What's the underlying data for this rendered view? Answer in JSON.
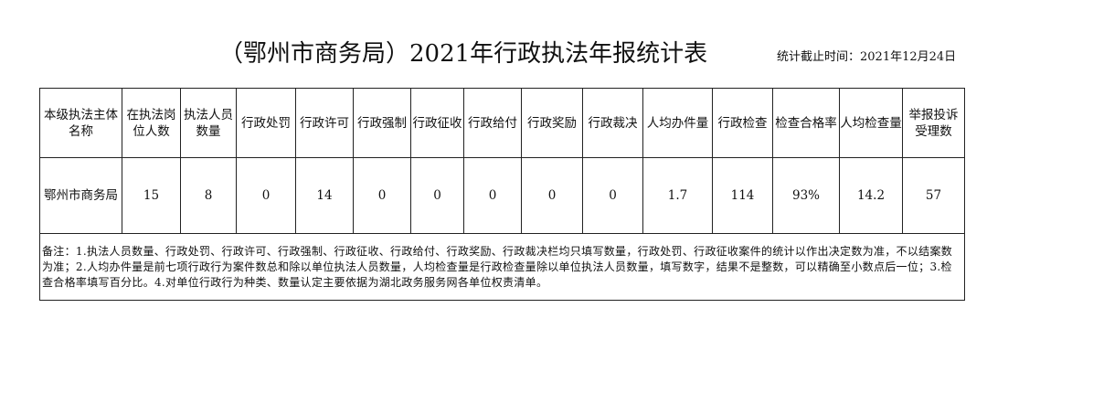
{
  "title": "（鄂州市商务局）2021年行政执法年报统计表",
  "date": "统计截止时间：2021年12月24日",
  "headers": [
    "本级执法主体名称",
    "在执法岗位人数",
    "执法人员数量",
    "行政处罚",
    "行政许可",
    "行政强制",
    "行政征收",
    "行政给付",
    "行政奖励",
    "行政裁决",
    "人均办件量",
    "行政检查",
    "检查合格率",
    "人均检查量",
    "举报投诉受理数"
  ],
  "row": [
    "鄂州市商务局",
    "15",
    "8",
    "0",
    "14",
    "0",
    "0",
    "0",
    "0",
    "0",
    "1.7",
    "114",
    "93%",
    "14.2",
    "57"
  ],
  "note": "备注：1.执法人员数量、行政处罚、行政许可、行政强制、行政征收、行政给付、行政奖励、行政裁决栏均只填写数量，行政处罚、行政征收案件的统计以作出决定数为准，不以结案数为准；2.人均办件量是前七项行政行为案件数总和除以单位执法人员数量，人均检查量是行政检查量除以单位执法人员数量，填写数字，结果不是整数，可以精确至小数点后一位；3.检查合格率填写百分比。4.对单位行政行为种类、数量认定主要依据为湖北政务服务网各单位权责清单。"
}
